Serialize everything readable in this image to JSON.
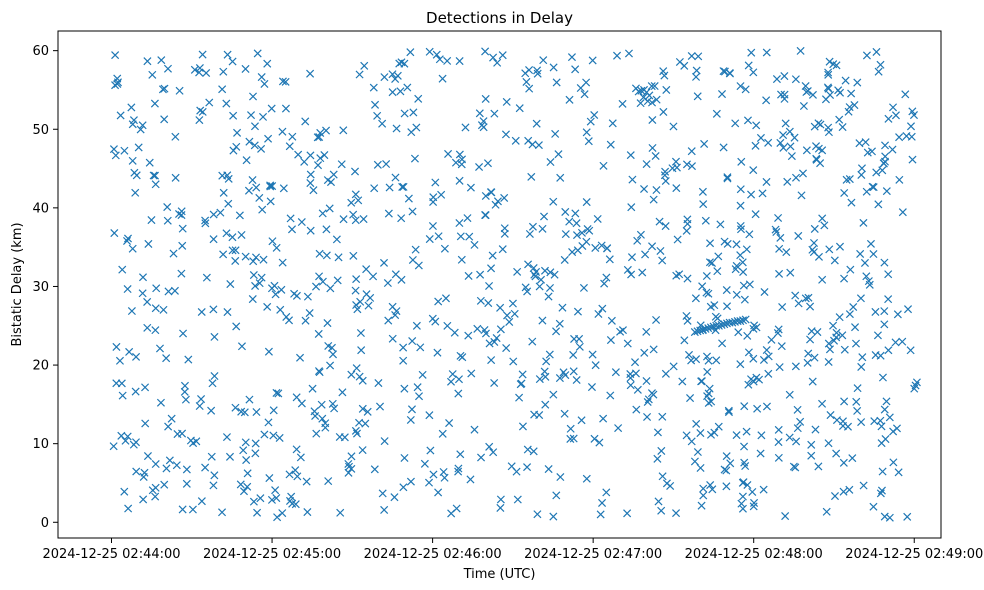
{
  "chart_data": {
    "type": "scatter",
    "title": "Detections in Delay",
    "xlabel": "Time (UTC)",
    "ylabel": "Bistatic Delay (km)",
    "marker": "x",
    "marker_color": "#1f77b4",
    "x_unit": "seconds since 2024-12-25 02:44:00",
    "xlim": [
      -20,
      310
    ],
    "ylim": [
      -2,
      62.5
    ],
    "x_ticks": [
      {
        "value": 0,
        "label": "2024-12-25 02:44:00"
      },
      {
        "value": 60,
        "label": "2024-12-25 02:45:00"
      },
      {
        "value": 120,
        "label": "2024-12-25 02:46:00"
      },
      {
        "value": 180,
        "label": "2024-12-25 02:47:00"
      },
      {
        "value": 240,
        "label": "2024-12-25 02:48:00"
      },
      {
        "value": 300,
        "label": "2024-12-25 02:49:00"
      }
    ],
    "y_ticks": [
      {
        "value": 0,
        "label": "0"
      },
      {
        "value": 10,
        "label": "10"
      },
      {
        "value": 20,
        "label": "20"
      },
      {
        "value": 30,
        "label": "30"
      },
      {
        "value": 40,
        "label": "40"
      },
      {
        "value": 50,
        "label": "50"
      },
      {
        "value": 60,
        "label": "60"
      }
    ],
    "random_detections": {
      "count": 1150,
      "seed": 20241225,
      "x_range": [
        0,
        300
      ],
      "y_range": [
        0.5,
        60
      ]
    },
    "track": {
      "x": [
        218,
        219,
        220,
        221,
        222,
        223,
        224,
        225,
        226,
        227,
        228,
        229,
        230,
        231,
        232,
        233,
        234,
        235,
        236,
        237
      ],
      "y": [
        24.2,
        24.3,
        24.4,
        24.5,
        24.6,
        24.7,
        24.8,
        24.9,
        25.0,
        25.0,
        25.1,
        25.2,
        25.3,
        25.4,
        25.4,
        25.5,
        25.6,
        25.6,
        25.7,
        25.8
      ]
    },
    "clusters": [
      {
        "x": [
          196,
          197,
          198,
          199,
          200,
          201,
          202,
          203
        ],
        "y": [
          55.2,
          54.8,
          54.9,
          55.0,
          54.7,
          54.3,
          53.4,
          55.5
        ]
      },
      {
        "x": [
          238,
          239,
          240,
          241
        ],
        "y": [
          17.5,
          18.2,
          17.9,
          18.4
        ]
      },
      {
        "x": [
          300,
          300.5,
          301
        ],
        "y": [
          17.0,
          17.4,
          17.8
        ]
      },
      {
        "x": [
          105,
          106,
          107
        ],
        "y": [
          57.0,
          56.4,
          56.8
        ]
      },
      {
        "x": [
          158,
          160,
          162,
          164
        ],
        "y": [
          31.5,
          30.0,
          32.0,
          31.8
        ]
      }
    ]
  }
}
